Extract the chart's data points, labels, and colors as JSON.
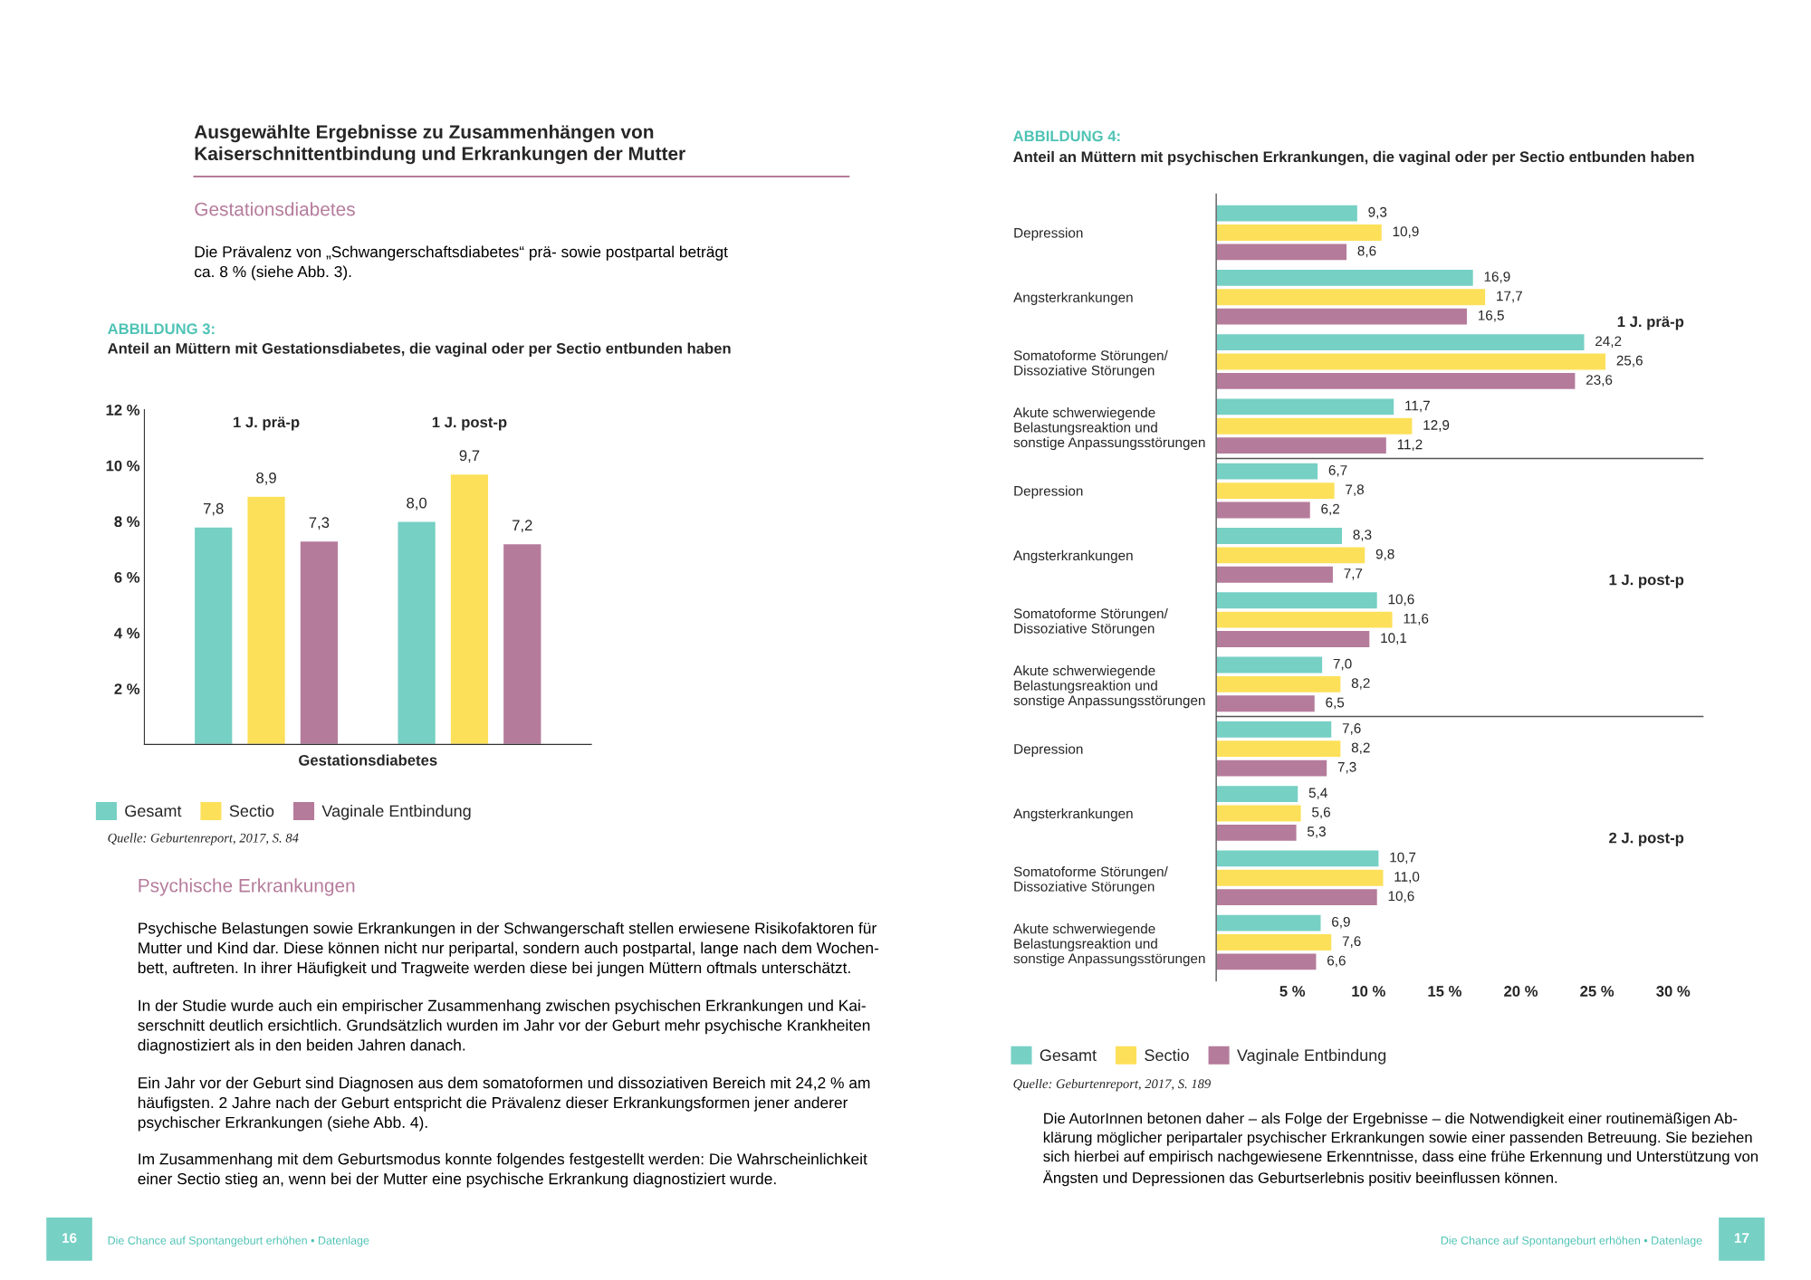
{
  "chart_data": [
    {
      "type": "bar",
      "title": "ABBILDUNG 3:",
      "subtitle": "Anteil an Müttern mit Gestationsdiabetes, die vaginal oder per Sectio entbunden haben",
      "xlabel": "Gestationsdiabetes",
      "categories": [
        "1 J. prä-p",
        "1 J. post-p"
      ],
      "series": [
        {
          "name": "Gesamt",
          "color": "#76d0c4",
          "values": [
            7.8,
            8.0
          ],
          "value_labels": [
            "7,8",
            "8,0"
          ]
        },
        {
          "name": "Sectio",
          "color": "#fde05a",
          "values": [
            8.9,
            9.7
          ],
          "value_labels": [
            "8,9",
            "9,7"
          ]
        },
        {
          "name": "Vaginale Entbindung",
          "color": "#b57b9b",
          "values": [
            7.3,
            7.2
          ],
          "value_labels": [
            "7,3",
            "7,2"
          ]
        }
      ],
      "ylim": [
        0,
        12
      ],
      "yticks": [
        {
          "value": 2,
          "label": "2 %"
        },
        {
          "value": 4,
          "label": "4 %"
        },
        {
          "value": 6,
          "label": "6 %"
        },
        {
          "value": 8,
          "label": "8 %"
        },
        {
          "value": 10,
          "label": "10 %"
        },
        {
          "value": 12,
          "label": "12 %"
        }
      ],
      "grid": false,
      "legend": "bottom",
      "annotations": [
        "Quelle: Geburtenreport, 2017, S. 84"
      ]
    },
    {
      "type": "bar",
      "orientation": "horizontal",
      "title": "ABBILDUNG 4:",
      "subtitle": "Anteil an Müttern mit psychischen Erkrankungen, die vaginal oder per Sectio entbunden haben",
      "categories": [
        "Depression",
        "Angsterkrankungen",
        "Somatoforme Störungen/\nDissoziative Störungen",
        "Akute schwerwiegende\nBelastungsreaktion und\nsonstige Anpassungsstörungen",
        "Depression",
        "Angsterkrankungen",
        "Somatoforme Störungen/\nDissoziative Störungen",
        "Akute schwerwiegende\nBelastungsreaktion und\nsonstige Anpassungsstörungen",
        "Depression",
        "Angsterkrankungen",
        "Somatoforme Störungen/\nDissoziative Störungen",
        "Akute schwerwiegende\nBelastungsreaktion und\nsonstige Anpassungsstörungen"
      ],
      "series": [
        {
          "name": "Gesamt",
          "color": "#76d0c4",
          "values": [
            9.3,
            16.9,
            24.2,
            11.7,
            6.7,
            8.3,
            10.6,
            7.0,
            7.6,
            5.4,
            10.7,
            6.9
          ],
          "value_labels": [
            "9,3",
            "16,9",
            "24,2",
            "11,7",
            "6,7",
            "8,3",
            "10,6",
            "7,0",
            "7,6",
            "5,4",
            "10,7",
            "6,9"
          ]
        },
        {
          "name": "Sectio",
          "color": "#fde05a",
          "values": [
            10.9,
            17.7,
            25.6,
            12.9,
            7.8,
            9.8,
            11.6,
            8.2,
            8.2,
            5.6,
            11.0,
            7.6
          ],
          "value_labels": [
            "10,9",
            "17,7",
            "25,6",
            "12,9",
            "7,8",
            "9,8",
            "11,6",
            "8,2",
            "8,2",
            "5,6",
            "11,0",
            "7,6"
          ]
        },
        {
          "name": "Vaginale Entbindung",
          "color": "#b57b9b",
          "values": [
            8.6,
            16.5,
            23.6,
            11.2,
            6.2,
            7.7,
            10.1,
            6.5,
            7.3,
            5.3,
            10.6,
            6.6
          ],
          "value_labels": [
            "8,6",
            "16,5",
            "23,6",
            "11,2",
            "6,2",
            "7,7",
            "10,1",
            "6,5",
            "7,3",
            "5,3",
            "10,6",
            "6,6"
          ]
        }
      ],
      "xlim": [
        0,
        32
      ],
      "xticks": [
        {
          "value": 5,
          "label": "5 %"
        },
        {
          "value": 10,
          "label": "10 %"
        },
        {
          "value": 15,
          "label": "15 %"
        },
        {
          "value": 20,
          "label": "20 %"
        },
        {
          "value": 25,
          "label": "25 %"
        },
        {
          "value": 30,
          "label": "30 %"
        }
      ],
      "grid": false,
      "legend": "bottom",
      "annotations": [
        "1 J. prä-p",
        "1 J. post-p",
        "2 J. post-p",
        "Quelle: Geburtenreport, 2017, S. 189"
      ]
    },
    {
      "type": "other",
      "title": "Ausgewählte Ergebnisse zu Zusammenhängen von\nKaiserschnittentbindung und Erkrankungen der Mutter",
      "annotations": [
        "Gestationsdiabetes",
        "Die Prävalenz von „Schwangerschaftsdiabetes“ prä- sowie postpartal beträgt\nca. 8 % (siehe Abb. 3).",
        "Psychische Erkrankungen",
        "Psychische Belastungen sowie Erkrankungen in der Schwangerschaft stellen erwiesene Risikofaktoren für\nMutter und Kind dar. Diese können nicht nur peripartal, sondern auch postpartal, lange nach dem Wochen-\nbett, auftreten. In ihrer Häufigkeit und Tragweite werden diese bei jungen Müttern oftmals unterschätzt.",
        "In der Studie wurde auch ein empirischer Zusammenhang zwischen psychischen Erkrankungen und Kai-\nserschnitt deutlich ersichtlich. Grundsätzlich wurden im Jahr vor der Geburt mehr psychische Krankheiten\ndiagnostiziert als in den beiden Jahren danach.",
        "Ein Jahr vor der Geburt sind Diagnosen aus dem somatoformen und dissoziativen Bereich mit 24,2 % am\nhäufigsten. 2 Jahre nach der Geburt entspricht die Prävalenz dieser Erkrankungsformen jener anderer\npsychischer Erkrankungen (siehe Abb. 4).",
        "Im Zusammenhang mit dem Geburtsmodus konnte folgendes festgestellt werden: Die Wahrscheinlichkeit\neiner Sectio stieg an, wenn bei der Mutter eine psychische Erkrankung diagnostiziert wurde.",
        "Die AutorInnen betonen daher – als Folge der Ergebnisse – die Notwendigkeit einer routinemäßigen Ab-\nklärung möglicher peripartaler psychischer Erkrankungen sowie einer passenden Betreuung. Sie beziehen\nsich hierbei auf empirisch nachgewiesene Erkenntnisse, dass eine frühe Erkennung und Unterstützung von\nÄngsten und Depressionen das Geburtserlebnis positiv beeinflussen können.",
        "Die Chance auf Spontangeburt erhöhen • Datenlage",
        "Die Chance auf Spontangeburt erhöhen • Datenlage",
        "16",
        "17"
      ]
    }
  ]
}
